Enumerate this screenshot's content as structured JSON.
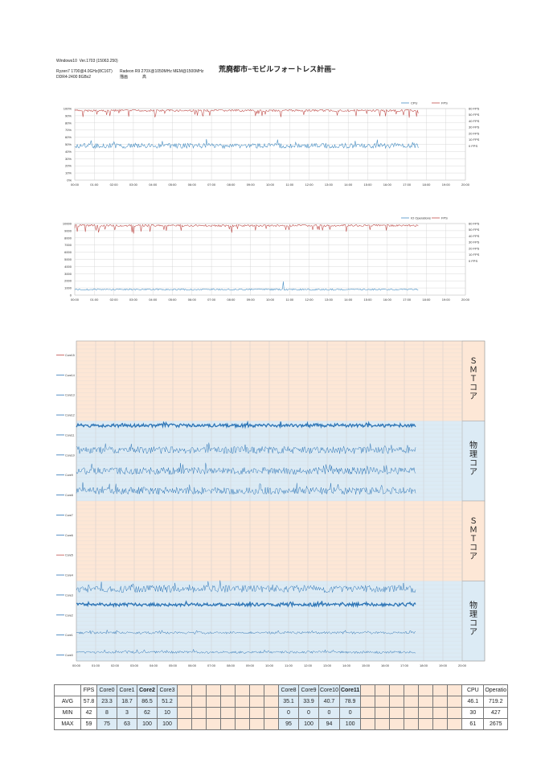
{
  "header": {
    "os": "Windows10  Ver.1703 (15063.250)",
    "cpu": "Ryzen7 1700@4.0GHz(8C16T)",
    "gpu": "Radeon R9 270X@1050MHz MEM@1500MHz",
    "memory": "DDR4-2400 8GBx2",
    "quality_label": "描画",
    "quality_value": "高",
    "title": "荒廃都市−モビルフォートレス計画−"
  },
  "colors": {
    "cpu_line": "#4a90c4",
    "fps_line": "#c0504d",
    "core_line": "#2e75b6",
    "core_bg": "#dcebf5",
    "smt_bg": "#fde7d6",
    "grid": "#cfcfcf"
  },
  "chart_data": [
    {
      "type": "line",
      "name": "cpu-fps-chart",
      "x_ticks": [
        "00:00",
        "01:00",
        "02:00",
        "03:00",
        "04:00",
        "05:00",
        "06:00",
        "07:00",
        "08:00",
        "09:00",
        "10:00",
        "11:00",
        "12:00",
        "13:00",
        "14:00",
        "15:00",
        "16:00",
        "17:00",
        "18:00",
        "19:00",
        "20:00"
      ],
      "y_ticks": [
        "0%",
        "10%",
        "20%",
        "30%",
        "40%",
        "50%",
        "60%",
        "70%",
        "80%",
        "90%",
        "100%"
      ],
      "y2_ticks": [
        "0 FPS",
        "10 FPS",
        "20 FPS",
        "30 FPS",
        "40 FPS",
        "50 FPS",
        "60 FPS"
      ],
      "legend": [
        "CPU",
        "FPS"
      ],
      "ylim": [
        0,
        100
      ],
      "y2lim": [
        0,
        60
      ],
      "x_end": "17:35",
      "series": [
        {
          "name": "CPU",
          "avg": 46.1,
          "min": 30,
          "max": 61
        },
        {
          "name": "FPS",
          "avg": 57.8,
          "min": 42,
          "max": 59
        }
      ]
    },
    {
      "type": "line",
      "name": "io-fps-chart",
      "x_ticks": [
        "00:00",
        "01:00",
        "02:00",
        "03:00",
        "04:00",
        "05:00",
        "06:00",
        "07:00",
        "08:00",
        "09:00",
        "10:00",
        "11:00",
        "12:00",
        "13:00",
        "14:00",
        "15:00",
        "16:00",
        "17:00",
        "18:00",
        "19:00",
        "20:00"
      ],
      "y_ticks": [
        "0",
        "1000",
        "2000",
        "3000",
        "4000",
        "5000",
        "6000",
        "7000",
        "8000",
        "9000",
        "10000"
      ],
      "y2_ticks": [
        "0 FPS",
        "10 FPS",
        "20 FPS",
        "30 FPS",
        "40 FPS",
        "50 FPS",
        "60 FPS"
      ],
      "legend": [
        "IO Operations",
        "FPS"
      ],
      "ylim": [
        0,
        10000
      ],
      "y2lim": [
        0,
        60
      ],
      "x_end": "17:35",
      "series": [
        {
          "name": "IO Operations",
          "avg": 719.2,
          "min": 427,
          "max": 2675
        },
        {
          "name": "FPS",
          "avg": 57.8,
          "min": 42,
          "max": 59
        }
      ]
    },
    {
      "type": "line",
      "name": "core-chart",
      "x_ticks": [
        "00:00",
        "01:00",
        "02:00",
        "03:00",
        "04:00",
        "05:00",
        "06:00",
        "07:00",
        "08:00",
        "09:00",
        "10:00",
        "11:00",
        "12:00",
        "13:00",
        "14:00",
        "15:00",
        "16:00",
        "17:00",
        "18:00",
        "19:00",
        "20:00"
      ],
      "cores": [
        "Core15",
        "Core14",
        "Core13",
        "Core12",
        "Core11",
        "Core10",
        "Core9",
        "Core8",
        "Core7",
        "Core6",
        "Core5",
        "Core4",
        "Core3",
        "Core2",
        "Core1",
        "Core0"
      ],
      "core_avg": {
        "Core15": 0,
        "Core14": 0,
        "Core13": 0,
        "Core12": 0,
        "Core11": 78.9,
        "Core10": 40.7,
        "Core9": 33.9,
        "Core8": 35.1,
        "Core7": 0,
        "Core6": 0,
        "Core5": 0,
        "Core4": 0,
        "Core3": 51.2,
        "Core2": 86.5,
        "Core1": 18.7,
        "Core0": 23.3
      },
      "bands": [
        {
          "label": "ＳＭＴコア",
          "kind": "smt"
        },
        {
          "label": "物理コア",
          "kind": "core"
        },
        {
          "label": "ＳＭＴコア",
          "kind": "smt"
        },
        {
          "label": "物理コア",
          "kind": "core"
        }
      ],
      "x_end": "17:35"
    }
  ],
  "stats_table": {
    "columns": [
      "FPS",
      "Core0",
      "Core1",
      "Core2",
      "Core3",
      "",
      "",
      "",
      "",
      "",
      "",
      "",
      "Core8",
      "Core9",
      "Core10",
      "Core11",
      "",
      "",
      "",
      "",
      "",
      "",
      "",
      "CPU",
      "Operatio"
    ],
    "rows": [
      {
        "label": "AVG",
        "values": [
          "57.8",
          "23.3",
          "18.7",
          "86.5",
          "51.2",
          "",
          "",
          "",
          "",
          "",
          "",
          "",
          "35.1",
          "33.9",
          "40.7",
          "78.9",
          "",
          "",
          "",
          "",
          "",
          "",
          "",
          "46.1",
          "719.2"
        ]
      },
      {
        "label": "MIN",
        "values": [
          "42",
          "8",
          "3",
          "62",
          "10",
          "",
          "",
          "",
          "",
          "",
          "",
          "",
          "0",
          "0",
          "0",
          "0",
          "",
          "",
          "",
          "",
          "",
          "",
          "",
          "30",
          "427"
        ]
      },
      {
        "label": "MAX",
        "values": [
          "59",
          "75",
          "63",
          "100",
          "100",
          "",
          "",
          "",
          "",
          "",
          "",
          "",
          "95",
          "100",
          "94",
          "100",
          "",
          "",
          "",
          "",
          "",
          "",
          "",
          "61",
          "2675"
        ]
      }
    ]
  }
}
